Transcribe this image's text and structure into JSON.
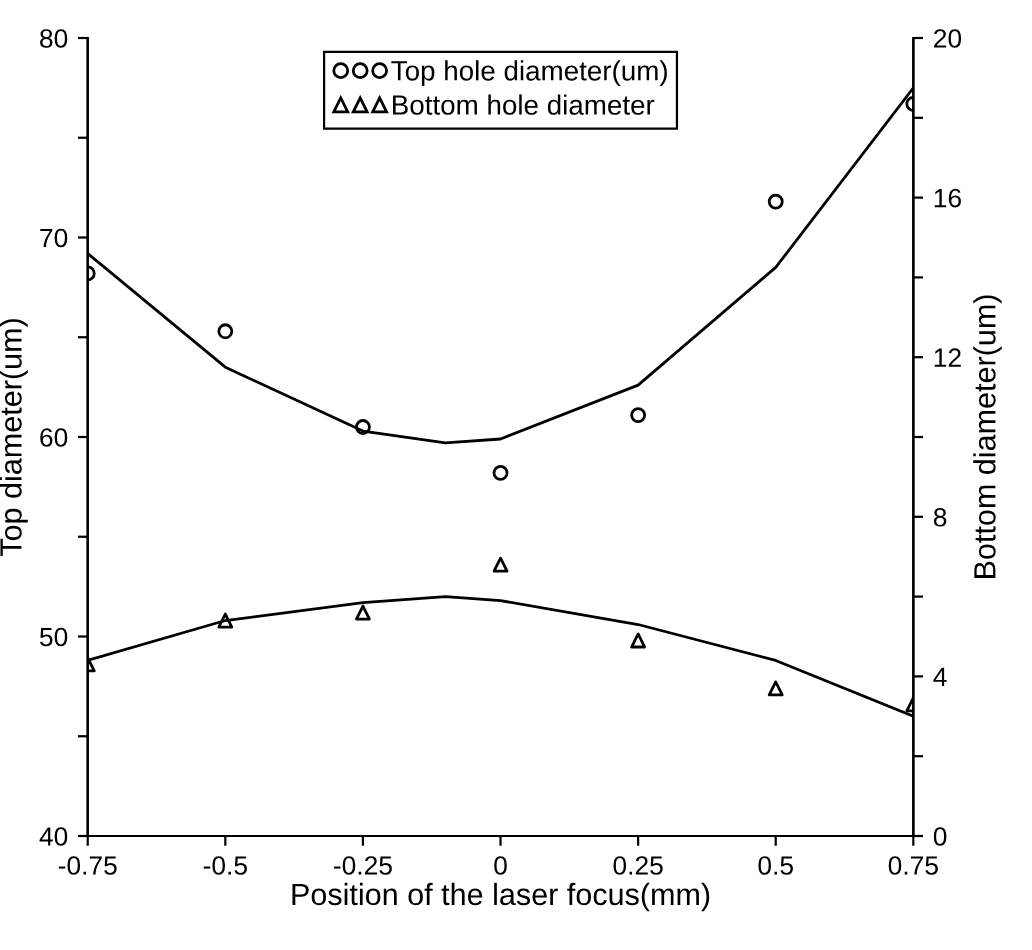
{
  "chart_data": {
    "type": "scatter",
    "xlabel": "Position of the laser focus(mm)",
    "ylabel": "Top diameter(um)",
    "y2label": "Bottom diameter(um)",
    "xlim": [
      -0.75,
      0.75
    ],
    "xticks": [
      -0.75,
      -0.5,
      -0.25,
      0,
      0.25,
      0.5,
      0.75
    ],
    "ylim": [
      40,
      80
    ],
    "yticks": [
      40,
      {
        "value": 45,
        "label": null
      },
      50,
      {
        "value": 55,
        "label": null
      },
      60,
      {
        "value": 65,
        "label": null
      },
      70,
      {
        "value": 75,
        "label": null
      },
      80
    ],
    "y2lim": [
      0,
      20
    ],
    "y2ticks": [
      0,
      {
        "value": 2,
        "label": null
      },
      4,
      {
        "value": 6,
        "label": null
      },
      8,
      {
        "value": 10,
        "label": null
      },
      12,
      {
        "value": 14,
        "label": null
      },
      16,
      {
        "value": 18,
        "label": null
      },
      20
    ],
    "legend": "top",
    "grid": false,
    "series": [
      {
        "name": "Top hole diameter(um)",
        "marker": "circle",
        "color": "#000000",
        "x": [
          -0.75,
          -0.5,
          -0.25,
          0,
          0.25,
          0.5,
          0.75
        ],
        "values": [
          68.2,
          65.3,
          60.5,
          58.2,
          61.1,
          71.8,
          76.7
        ]
      },
      {
        "name": "Bottom hole diameter",
        "marker": "triangle",
        "color": "#000000",
        "axis": "y2",
        "x": [
          -0.75,
          -0.5,
          -0.25,
          0,
          0.25,
          0.5,
          0.75
        ],
        "values": [
          4.3,
          5.4,
          5.6,
          6.8,
          4.9,
          3.7,
          3.3
        ]
      },
      {
        "type": "line",
        "color": "#000000",
        "x": [
          -0.75,
          -0.5,
          -0.25,
          -0.1,
          0,
          0.25,
          0.5,
          0.75
        ],
        "values": [
          69.2,
          63.5,
          60.3,
          59.7,
          59.9,
          62.6,
          68.5,
          77.5
        ]
      },
      {
        "type": "line",
        "color": "#000000",
        "axis": "y2",
        "x": [
          -0.75,
          -0.5,
          -0.25,
          -0.1,
          0,
          0.25,
          0.5,
          0.75
        ],
        "values": [
          4.4,
          5.4,
          5.85,
          6.0,
          5.9,
          5.3,
          4.4,
          3.0
        ]
      }
    ]
  }
}
